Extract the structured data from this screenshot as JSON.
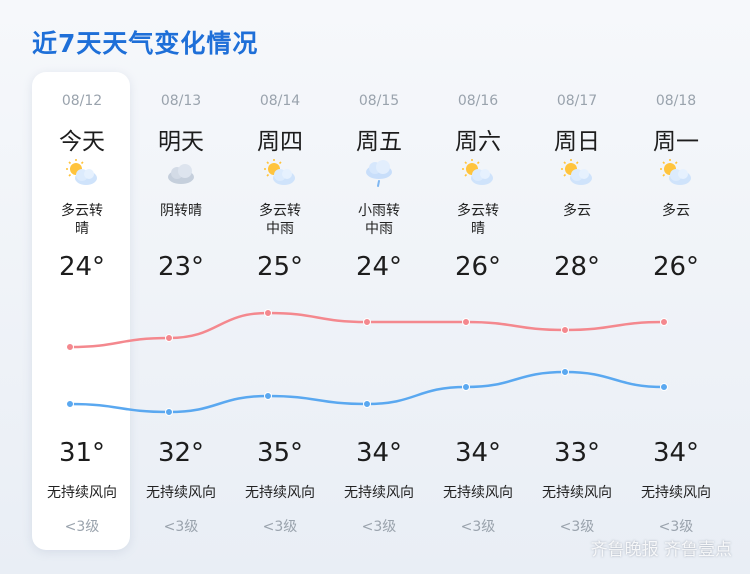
{
  "title": "近7天天气变化情况",
  "days": [
    {
      "date": "08/12",
      "day": "今天",
      "icon": "partly-cloudy-icon",
      "cond1": "多云转",
      "cond2": "晴",
      "high": "24°",
      "low": "31°",
      "wind": "无持续风向",
      "level": "<3级"
    },
    {
      "date": "08/13",
      "day": "明天",
      "icon": "overcast-icon",
      "cond1": "阴转晴",
      "cond2": "",
      "high": "23°",
      "low": "32°",
      "wind": "无持续风向",
      "level": "<3级"
    },
    {
      "date": "08/14",
      "day": "周四",
      "icon": "partly-cloudy-icon",
      "cond1": "多云转",
      "cond2": "中雨",
      "high": "25°",
      "low": "35°",
      "wind": "无持续风向",
      "level": "<3级"
    },
    {
      "date": "08/15",
      "day": "周五",
      "icon": "light-rain-icon",
      "cond1": "小雨转",
      "cond2": "中雨",
      "high": "24°",
      "low": "34°",
      "wind": "无持续风向",
      "level": "<3级"
    },
    {
      "date": "08/16",
      "day": "周六",
      "icon": "partly-cloudy-icon",
      "cond1": "多云转",
      "cond2": "晴",
      "high": "26°",
      "low": "34°",
      "wind": "无持续风向",
      "level": "<3级"
    },
    {
      "date": "08/17",
      "day": "周日",
      "icon": "partly-cloudy-icon",
      "cond1": "多云",
      "cond2": "",
      "high": "28°",
      "low": "33°",
      "wind": "无持续风向",
      "level": "<3级"
    },
    {
      "date": "08/18",
      "day": "周一",
      "icon": "partly-cloudy-icon",
      "cond1": "多云",
      "cond2": "",
      "high": "26°",
      "low": "34°",
      "wind": "无持续风向",
      "level": "<3级"
    }
  ],
  "chart_data": {
    "type": "line",
    "categories": [
      "08/12",
      "08/13",
      "08/14",
      "08/15",
      "08/16",
      "08/17",
      "08/18"
    ],
    "series": [
      {
        "values": [
          24,
          23,
          25,
          24,
          26,
          28,
          26
        ],
        "color": "#f4888e"
      },
      {
        "values": [
          31,
          32,
          35,
          34,
          34,
          33,
          34
        ],
        "color": "#5aa8f0"
      }
    ]
  },
  "watermark": "齐鲁晚报 齐鲁壹点"
}
